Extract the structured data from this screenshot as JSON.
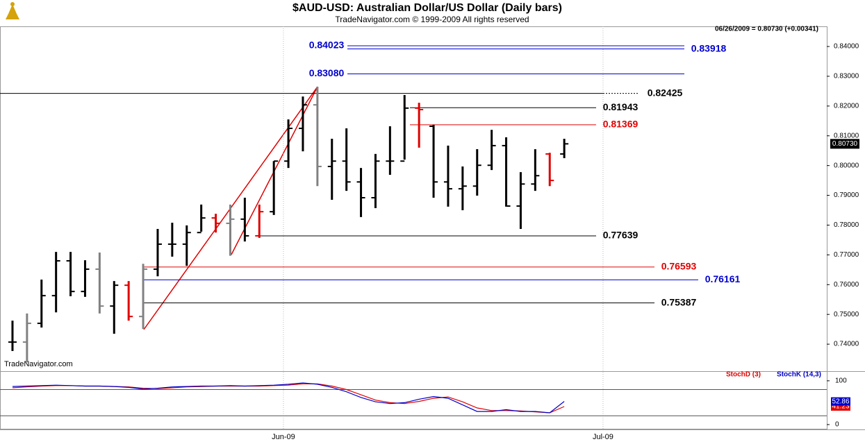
{
  "header": {
    "title": "$AUD-USD:  Australian Dollar/US Dollar  (Daily bars)",
    "subtitle": "TradeNavigator.com © 1999-2009 All rights reserved",
    "info": "06/26/2009 = 0.80730 (+0.00341)",
    "watermark": "TradeNavigator.com"
  },
  "chart_data": [
    {
      "type": "ohlc",
      "x": [
        0,
        1,
        2,
        3,
        4,
        5,
        6,
        7,
        8,
        9,
        10,
        11,
        12,
        13,
        14,
        15,
        16,
        17,
        18,
        19,
        20,
        21,
        22,
        23,
        24,
        25,
        26,
        27,
        28,
        29,
        30,
        31,
        32,
        33,
        34,
        35,
        36,
        37,
        38
      ],
      "open": [
        0.7407,
        0.7407,
        0.747,
        0.7563,
        0.768,
        0.7577,
        0.7652,
        0.7528,
        0.7598,
        0.7493,
        0.7652,
        0.7736,
        0.7736,
        0.7775,
        0.7824,
        0.7806,
        0.782,
        0.7764,
        0.7845,
        0.8015,
        0.8125,
        0.8204,
        0.7997,
        0.8015,
        0.7945,
        0.7892,
        0.8015,
        0.8015,
        0.8193,
        0.8132,
        0.7945,
        0.7922,
        0.7931,
        0.8001,
        0.8067,
        0.7864,
        0.7938,
        0.8039,
        0.8039
      ],
      "high": [
        0.7479,
        0.7503,
        0.7617,
        0.771,
        0.771,
        0.7682,
        0.7708,
        0.7612,
        0.7612,
        0.767,
        0.7787,
        0.7808,
        0.7799,
        0.7869,
        0.7838,
        0.7869,
        0.7892,
        0.7869,
        0.8015,
        0.8155,
        0.8232,
        0.8265,
        0.809,
        0.8125,
        0.7992,
        0.8039,
        0.8132,
        0.8237,
        0.8211,
        0.8137,
        0.8067,
        0.7997,
        0.8055,
        0.812,
        0.8095,
        0.7978,
        0.8055,
        0.8043,
        0.809
      ],
      "low": [
        0.7377,
        0.7339,
        0.7456,
        0.7507,
        0.7561,
        0.7559,
        0.7503,
        0.7435,
        0.7479,
        0.7451,
        0.7628,
        0.7694,
        0.7663,
        0.7778,
        0.7775,
        0.7697,
        0.7745,
        0.7757,
        0.7834,
        0.7992,
        0.8048,
        0.7931,
        0.7885,
        0.7915,
        0.7827,
        0.7857,
        0.7969,
        0.802,
        0.806,
        0.7892,
        0.7862,
        0.785,
        0.7899,
        0.7985,
        0.7862,
        0.7787,
        0.7915,
        0.7931,
        0.8025
      ],
      "close": [
        0.7407,
        0.747,
        0.7563,
        0.768,
        0.7577,
        0.7652,
        0.7528,
        0.7598,
        0.7493,
        0.7652,
        0.7736,
        0.7736,
        0.7775,
        0.7824,
        0.7806,
        0.782,
        0.7764,
        0.7845,
        0.8015,
        0.8125,
        0.8204,
        0.7997,
        0.8015,
        0.7945,
        0.7892,
        0.8015,
        0.8015,
        0.8193,
        0.8188,
        0.7945,
        0.7922,
        0.7931,
        0.8001,
        0.8067,
        0.7864,
        0.7938,
        0.7966,
        0.795,
        0.8073
      ],
      "colors": [
        "#000000",
        "#808080",
        "#000000",
        "#000000",
        "#000000",
        "#000000",
        "#808080",
        "#000000",
        "#e00000",
        "#808080",
        "#000000",
        "#000000",
        "#000000",
        "#000000",
        "#e00000",
        "#808080",
        "#000000",
        "#e00000",
        "#000000",
        "#000000",
        "#000000",
        "#808080",
        "#000000",
        "#000000",
        "#000000",
        "#000000",
        "#000000",
        "#000000",
        "#e00000",
        "#000000",
        "#000000",
        "#000000",
        "#000000",
        "#000000",
        "#000000",
        "#000000",
        "#000000",
        "#e00000",
        "#000000"
      ],
      "last_price_label": "0.80730",
      "xlim": [
        -0.86,
        56.08
      ],
      "xticks": [
        {
          "value": 18.66,
          "label": "Jun-09"
        },
        {
          "value": 40.67,
          "label": "Jul-09"
        }
      ],
      "ylim": [
        0.7321,
        0.8463
      ],
      "yticks": [
        {
          "value": 0.74,
          "label": "0.74000"
        },
        {
          "value": 0.75,
          "label": "0.75000"
        },
        {
          "value": 0.76,
          "label": "0.76000"
        },
        {
          "value": 0.77,
          "label": "0.77000"
        },
        {
          "value": 0.78,
          "label": "0.78000"
        },
        {
          "value": 0.79,
          "label": "0.79000"
        },
        {
          "value": 0.8,
          "label": "0.80000"
        },
        {
          "value": 0.81,
          "label": "0.81000"
        },
        {
          "value": 0.82,
          "label": "0.82000"
        },
        {
          "value": 0.83,
          "label": "0.83000"
        },
        {
          "value": 0.84,
          "label": "0.84000"
        }
      ],
      "levels": [
        {
          "value": 0.84023,
          "color": "#0000cc"
        },
        {
          "value": 0.83918,
          "color": "#0000cc"
        },
        {
          "value": 0.8308,
          "label": "0.83080",
          "color": "#0000cc"
        },
        {
          "value": 0.82425,
          "color": "#000000"
        },
        {
          "value": 0.81943,
          "color": "#000000"
        },
        {
          "value": 0.81369,
          "color": "#e00000"
        },
        {
          "value": 0.77639,
          "color": "#000000"
        },
        {
          "value": 0.76593,
          "color": "#e00000"
        },
        {
          "value": 0.76161,
          "color": "#0000cc"
        },
        {
          "value": 0.75387,
          "color": "#000000"
        }
      ]
    },
    {
      "type": "line",
      "x": [
        0,
        1,
        2,
        3,
        4,
        5,
        6,
        7,
        8,
        9,
        10,
        11,
        12,
        13,
        14,
        15,
        16,
        17,
        18,
        19,
        20,
        21,
        22,
        23,
        24,
        25,
        26,
        27,
        28,
        29,
        30,
        31,
        32,
        33,
        34,
        35,
        36,
        37,
        38
      ],
      "series": [
        {
          "name": "StochD (3)",
          "color": "#e00000",
          "values": [
            84,
            86,
            88,
            89,
            89,
            88,
            88,
            87,
            86,
            83,
            82,
            84,
            86,
            87,
            88,
            88,
            88,
            88,
            89,
            90,
            93,
            93,
            88,
            80,
            68,
            56,
            50,
            48,
            53,
            60,
            63,
            52,
            38,
            32,
            32,
            31,
            29,
            27,
            41.23
          ]
        },
        {
          "name": "StochK (14,3)",
          "color": "#0000cc",
          "values": [
            87,
            88,
            89,
            90,
            89,
            88,
            88,
            87,
            85,
            81,
            83,
            86,
            87,
            88,
            88,
            89,
            88,
            89,
            90,
            92,
            95,
            92,
            85,
            75,
            62,
            52,
            48,
            50,
            58,
            64,
            60,
            45,
            30,
            30,
            34,
            30,
            30,
            27,
            52.86
          ]
        }
      ],
      "guide_lines": [
        80,
        20
      ],
      "xlim": [
        -0.86,
        56.08
      ],
      "ylim": [
        -9.5,
        122
      ],
      "yticks": [
        0,
        100
      ]
    }
  ]
}
